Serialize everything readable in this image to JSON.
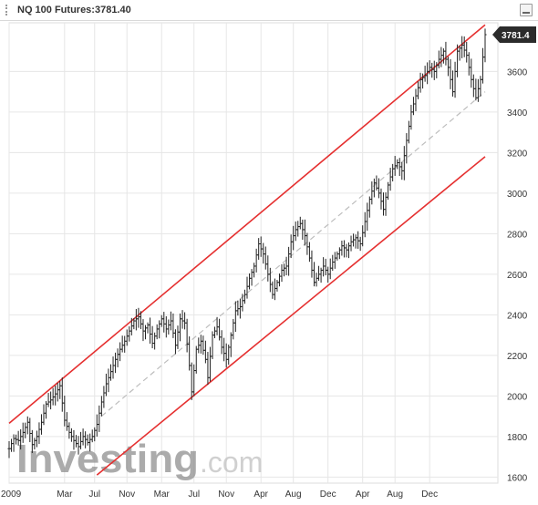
{
  "header": {
    "title": "NQ 100 Futures:3781.40"
  },
  "chart_data": {
    "type": "ohlc",
    "title": "NQ 100 Futures:3781.40",
    "last_price_label": "3781.4",
    "watermark": "Investing.com",
    "x_labels": [
      "2009",
      "Mar",
      "Jul",
      "Nov",
      "Mar",
      "Jul",
      "Nov",
      "Apr",
      "Aug",
      "Dec",
      "Apr",
      "Aug",
      "Dec"
    ],
    "x_label_positions": [
      0,
      24,
      37,
      51,
      66,
      80,
      94,
      109,
      123,
      138,
      153,
      167,
      182
    ],
    "y_ticks": [
      1600,
      1800,
      2000,
      2200,
      2400,
      2600,
      2800,
      3000,
      3200,
      3400,
      3600
    ],
    "ylim": [
      1570,
      3840
    ],
    "xlim": [
      0,
      206
    ],
    "grid": true,
    "anchors": [
      [
        0,
        1740
      ],
      [
        2,
        1790
      ],
      [
        4,
        1780
      ],
      [
        6,
        1820
      ],
      [
        8,
        1870
      ],
      [
        10,
        1760
      ],
      [
        12,
        1800
      ],
      [
        14,
        1870
      ],
      [
        16,
        1960
      ],
      [
        18,
        1980
      ],
      [
        20,
        2010
      ],
      [
        22,
        2050
      ],
      [
        24,
        1880
      ],
      [
        26,
        1820
      ],
      [
        28,
        1780
      ],
      [
        30,
        1750
      ],
      [
        32,
        1800
      ],
      [
        34,
        1770
      ],
      [
        36,
        1800
      ],
      [
        38,
        1860
      ],
      [
        40,
        1970
      ],
      [
        42,
        2060
      ],
      [
        44,
        2120
      ],
      [
        46,
        2180
      ],
      [
        48,
        2230
      ],
      [
        50,
        2270
      ],
      [
        52,
        2320
      ],
      [
        54,
        2370
      ],
      [
        56,
        2390
      ],
      [
        58,
        2320
      ],
      [
        60,
        2350
      ],
      [
        62,
        2260
      ],
      [
        64,
        2330
      ],
      [
        66,
        2380
      ],
      [
        68,
        2330
      ],
      [
        70,
        2370
      ],
      [
        72,
        2250
      ],
      [
        74,
        2380
      ],
      [
        76,
        2360
      ],
      [
        78,
        2150
      ],
      [
        79,
        2020
      ],
      [
        81,
        2230
      ],
      [
        83,
        2270
      ],
      [
        85,
        2180
      ],
      [
        86,
        2090
      ],
      [
        88,
        2300
      ],
      [
        90,
        2340
      ],
      [
        92,
        2240
      ],
      [
        94,
        2180
      ],
      [
        96,
        2300
      ],
      [
        98,
        2420
      ],
      [
        100,
        2440
      ],
      [
        102,
        2500
      ],
      [
        104,
        2580
      ],
      [
        106,
        2640
      ],
      [
        108,
        2750
      ],
      [
        110,
        2700
      ],
      [
        112,
        2600
      ],
      [
        114,
        2500
      ],
      [
        116,
        2560
      ],
      [
        118,
        2620
      ],
      [
        120,
        2640
      ],
      [
        122,
        2760
      ],
      [
        124,
        2820
      ],
      [
        126,
        2850
      ],
      [
        128,
        2790
      ],
      [
        130,
        2680
      ],
      [
        132,
        2560
      ],
      [
        134,
        2600
      ],
      [
        136,
        2640
      ],
      [
        138,
        2600
      ],
      [
        140,
        2660
      ],
      [
        142,
        2700
      ],
      [
        144,
        2740
      ],
      [
        146,
        2720
      ],
      [
        148,
        2760
      ],
      [
        150,
        2780
      ],
      [
        152,
        2750
      ],
      [
        154,
        2860
      ],
      [
        156,
        2970
      ],
      [
        158,
        3050
      ],
      [
        160,
        3000
      ],
      [
        162,
        2920
      ],
      [
        164,
        3040
      ],
      [
        166,
        3120
      ],
      [
        168,
        3150
      ],
      [
        170,
        3110
      ],
      [
        172,
        3260
      ],
      [
        174,
        3400
      ],
      [
        176,
        3480
      ],
      [
        178,
        3560
      ],
      [
        180,
        3580
      ],
      [
        182,
        3620
      ],
      [
        184,
        3600
      ],
      [
        186,
        3660
      ],
      [
        188,
        3700
      ],
      [
        190,
        3620
      ],
      [
        192,
        3500
      ],
      [
        194,
        3700
      ],
      [
        196,
        3730
      ],
      [
        198,
        3680
      ],
      [
        200,
        3560
      ],
      [
        202,
        3470
      ],
      [
        204,
        3560
      ],
      [
        206,
        3781.4
      ]
    ],
    "lines": [
      {
        "name": "upper-channel",
        "color": "#e53030",
        "x1": 0,
        "y1": 1865,
        "x2": 206,
        "y2": 3830,
        "dashed": false
      },
      {
        "name": "lower-channel",
        "color": "#e53030",
        "x1": 38,
        "y1": 1610,
        "x2": 206,
        "y2": 3180,
        "dashed": false
      },
      {
        "name": "mid-channel",
        "color": "#bdbdbd",
        "x1": 40,
        "y1": 1900,
        "x2": 206,
        "y2": 3500,
        "dashed": true
      }
    ]
  },
  "colors": {
    "grid": "#e6e6e6",
    "bar": "#222222",
    "channel": "#e53030",
    "mid": "#bdbdbd",
    "price_tag_bg": "#2b2b2b",
    "price_tag_text": "#ffffff",
    "watermark_dark": "#8f8f8f",
    "watermark_light": "#c4c4c4"
  }
}
